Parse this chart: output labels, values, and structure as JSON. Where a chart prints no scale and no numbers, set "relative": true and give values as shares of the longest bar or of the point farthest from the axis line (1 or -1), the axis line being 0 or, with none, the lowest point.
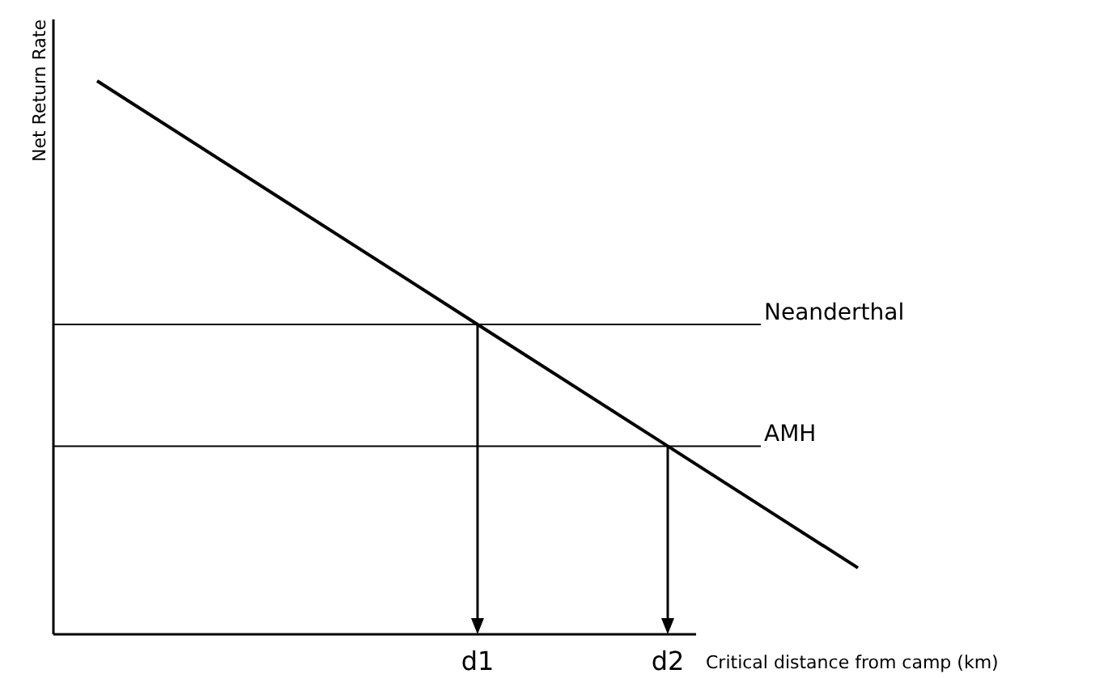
{
  "chart_data": {
    "type": "line",
    "relative": true,
    "xlabel": "Critical distance from camp (km)",
    "ylabel": "Net Return Rate",
    "categories": [
      null,
      null,
      "d1",
      "d2",
      null
    ],
    "series": [
      {
        "color": "#000000",
        "values": [
          1,
          0.78,
          0.56,
          0.34,
          0.12
        ]
      }
    ],
    "ref_lines": [
      {
        "axis": "y",
        "value": 0.56,
        "label": "Neanderthal",
        "color": "#000000"
      },
      {
        "axis": "y",
        "value": 0.34,
        "label": "AMH",
        "color": "#000000"
      }
    ],
    "line_style": "solid"
  }
}
